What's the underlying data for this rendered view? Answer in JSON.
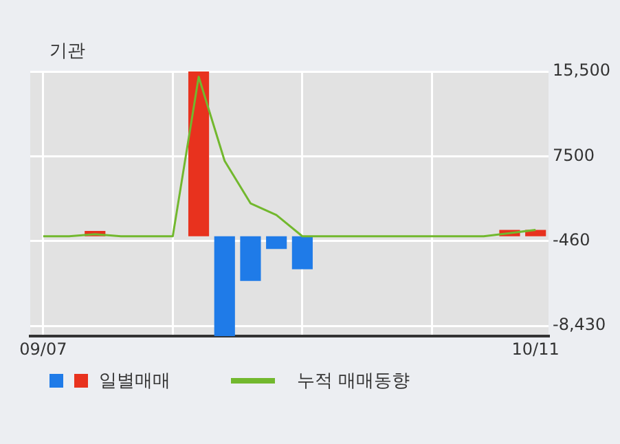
{
  "chart_data": {
    "type": "bar",
    "title": "기관",
    "categories": [
      "09/07",
      null,
      null,
      null,
      null,
      null,
      null,
      null,
      null,
      null,
      null,
      null,
      null,
      null,
      null,
      null,
      null,
      null,
      null,
      "10/11"
    ],
    "series": [
      {
        "name": "일별매매",
        "colors": [
          "#e8321e",
          "#e8321e",
          "#e8321e",
          "#e8321e",
          "#e8321e",
          "#e8321e",
          "#e8321e",
          "#1f7be8",
          "#1f7be8",
          "#1f7be8",
          "#1f7be8",
          "#e8321e",
          "#e8321e",
          "#e8321e",
          "#e8321e",
          "#e8321e",
          "#e8321e",
          "#e8321e",
          "#e8321e",
          "#e8321e"
        ],
        "values": [
          0,
          0,
          500,
          0,
          0,
          0,
          15500,
          -9400,
          -4200,
          -1200,
          -3100,
          0,
          0,
          0,
          0,
          0,
          0,
          0,
          600,
          600
        ]
      },
      {
        "name": "누적 매매동향",
        "type": "line",
        "color": "#72b82e",
        "values": [
          0,
          0,
          200,
          0,
          0,
          0,
          15000,
          7100,
          3100,
          2000,
          0,
          0,
          0,
          0,
          0,
          0,
          0,
          0,
          300,
          600
        ]
      }
    ],
    "ylim": [
      -9400,
      15500
    ],
    "yticks": [
      {
        "value": 15500,
        "label": "15,500"
      },
      7500,
      -460,
      {
        "value": -8430,
        "label": "-8,430"
      }
    ],
    "grid": true,
    "legend": "bottom"
  }
}
